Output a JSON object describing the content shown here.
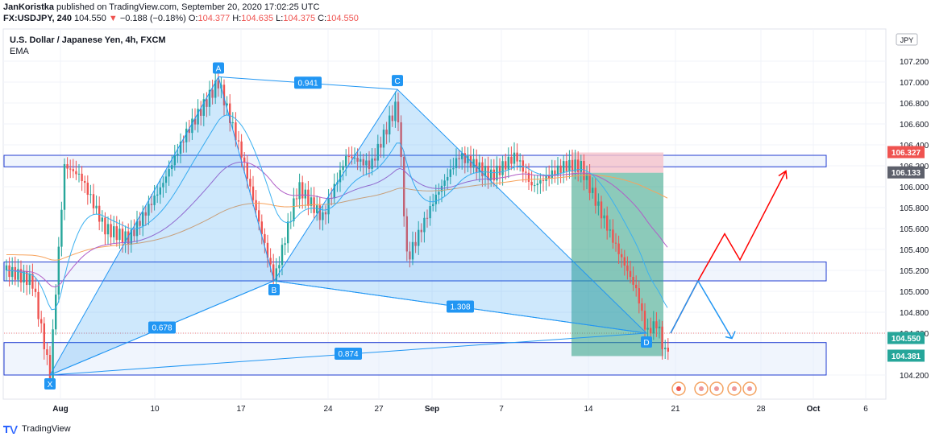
{
  "header": {
    "author": "JanKoristka",
    "published": "published on TradingView.com, September 20, 2020 17:02:25 UTC",
    "symbol": "FX:USDJPY, 240",
    "last": "104.550",
    "arrow": "▼",
    "change": "−0.188 (−0.18%)",
    "o_label": "O:",
    "o": "104.377",
    "h_label": "H:",
    "h": "104.635",
    "l_label": "L:",
    "l": "104.375",
    "c_label": "C:",
    "c": "104.550"
  },
  "footer": {
    "brand": "TradingView"
  },
  "colors": {
    "up": "#26a69a",
    "down": "#ef5350",
    "pattern": "#2196f3",
    "ema_orange": "#f7a35c",
    "ema_purple": "#b05ec7",
    "ema_blue": "#3cb1f0",
    "zone_fill": "#e3ecfb",
    "zone_stroke": "#1f3bd1",
    "target_fill": "#2e9f82",
    "stop_fill": "#f6c3cb"
  },
  "chart_data": {
    "type": "candlestick",
    "title": "U.S. Dollar / Japanese Yen, 4h, FXCM",
    "indicator": "EMA",
    "currency": "JPY",
    "ylim": [
      104.0,
      107.45
    ],
    "y_ticks": [
      "107.200",
      "107.000",
      "106.800",
      "106.600",
      "106.400",
      "106.200",
      "106.000",
      "105.800",
      "105.600",
      "105.400",
      "105.200",
      "105.000",
      "104.800",
      "104.600",
      "104.200"
    ],
    "x_ticks": [
      "Aug",
      "10",
      "17",
      "24",
      "27",
      "Sep",
      "7",
      "14",
      "21",
      "28",
      "Oct",
      "6"
    ],
    "price_labels": [
      {
        "label": "106.327",
        "value": 106.327,
        "color": "#ef5350"
      },
      {
        "label": "106.133",
        "value": 106.133,
        "color": "#5d606b"
      },
      {
        "label": "104.550",
        "value": 104.55,
        "color": "#26a69a"
      },
      {
        "label": "104.381",
        "value": 104.381,
        "color": "#26a69a"
      }
    ],
    "pattern_points": [
      {
        "label": "X",
        "x": "Aug 1",
        "y": 104.2
      },
      {
        "label": "A",
        "x": "Aug 14",
        "y": 107.05
      },
      {
        "label": "B",
        "x": "Aug 18",
        "y": 105.1
      },
      {
        "label": "C",
        "x": "Aug 28",
        "y": 106.93
      },
      {
        "label": "D",
        "x": "Sep 18",
        "y": 104.6
      }
    ],
    "ratios": [
      {
        "label": "0.678",
        "between": "X-B"
      },
      {
        "label": "0.941",
        "between": "A-C"
      },
      {
        "label": "1.308",
        "between": "B-D"
      },
      {
        "label": "0.874",
        "between": "X-D"
      }
    ],
    "zones": [
      {
        "from": 106.19,
        "to": 106.3
      },
      {
        "from": 105.1,
        "to": 105.28
      },
      {
        "from": 104.2,
        "to": 104.51
      }
    ],
    "position": {
      "entry": 106.133,
      "stop": 106.327,
      "target": 104.381
    },
    "projection_up": [
      104.6,
      105.1,
      105.55,
      105.3,
      106.15
    ],
    "projection_down": [
      104.6,
      105.1,
      104.55
    ]
  }
}
